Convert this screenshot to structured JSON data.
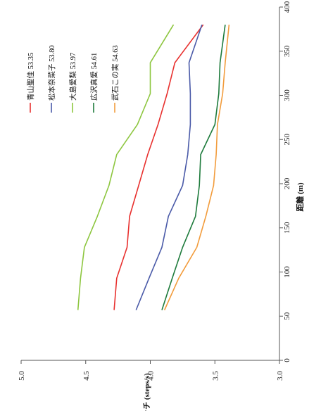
{
  "chart_data": {
    "type": "line",
    "orientation": "rotated-90-ccw",
    "xlabel": "距離 (m)",
    "ylabel": "ピッチ (steps/s)",
    "xlim": [
      0,
      400
    ],
    "ylim": [
      3.0,
      5.0
    ],
    "x_ticks": [
      "0",
      "50",
      "100",
      "150",
      "200",
      "250",
      "300",
      "350",
      "400"
    ],
    "y_ticks": [
      "3.0",
      "3.5",
      "4.0",
      "4.5",
      "5.0"
    ],
    "grid": false,
    "legend_placement": "top-left",
    "x": [
      57,
      93,
      128,
      163,
      198,
      233,
      267,
      302,
      337,
      380
    ],
    "series": [
      {
        "name": "青山聖佳 53.35",
        "color": "#e8312f",
        "values": [
          4.28,
          4.26,
          4.18,
          4.16,
          4.09,
          4.02,
          3.94,
          3.87,
          3.81,
          3.59
        ]
      },
      {
        "name": "松本奈菜子 53.80",
        "color": "#4a5aa8",
        "values": [
          4.11,
          4.01,
          3.91,
          3.86,
          3.75,
          3.71,
          3.69,
          3.69,
          3.7,
          3.6
        ]
      },
      {
        "name": "大島愛梨 53.97",
        "color": "#8dc63f",
        "values": [
          4.56,
          4.54,
          4.51,
          4.41,
          4.32,
          4.26,
          4.1,
          4.0,
          4.0,
          3.82
        ]
      },
      {
        "name": "広沢真愛 54.61",
        "color": "#1e7b3c",
        "values": [
          3.91,
          3.83,
          3.75,
          3.65,
          3.62,
          3.61,
          3.5,
          3.47,
          3.46,
          3.42
        ]
      },
      {
        "name": "武石この実 54.63",
        "color": "#f29c3c",
        "values": [
          3.89,
          3.78,
          3.64,
          3.57,
          3.51,
          3.49,
          3.48,
          3.44,
          3.42,
          3.39
        ]
      }
    ]
  }
}
